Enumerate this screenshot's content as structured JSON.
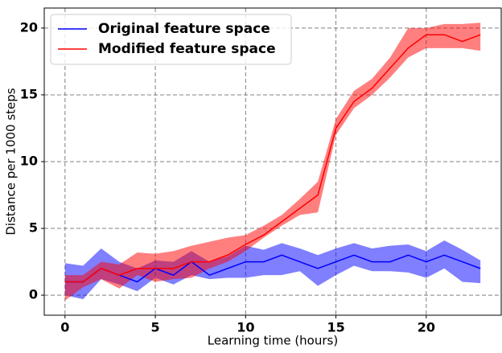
{
  "chart_data": {
    "type": "line",
    "x": [
      0,
      1,
      2,
      3,
      4,
      5,
      6,
      7,
      8,
      9,
      10,
      11,
      12,
      13,
      14,
      15,
      16,
      17,
      18,
      19,
      20,
      21,
      22,
      23
    ],
    "x_label": "Learning time (hours)",
    "y_label": "Distance per 1000 steps",
    "xlim": [
      -1.15,
      24.15
    ],
    "xticks": [
      0,
      5,
      10,
      15,
      20
    ],
    "ylim": [
      -1.5,
      21.5
    ],
    "yticks": [
      0,
      5,
      10,
      15,
      20
    ],
    "grid": true,
    "legend": "upper left",
    "series": [
      {
        "name": "Original feature space",
        "color": "#0000ff",
        "values": [
          1,
          1,
          2,
          1.5,
          1,
          2,
          1.5,
          2.5,
          1.5,
          2,
          2.5,
          2.5,
          3,
          2.5,
          2,
          2.5,
          3,
          2.5,
          2.5,
          3,
          2.5,
          3,
          2.5,
          2
        ],
        "lower": [
          0,
          -0.3,
          1.2,
          0.8,
          0.3,
          1.3,
          0.8,
          1.5,
          1.2,
          1.3,
          1.3,
          1.5,
          1.5,
          1.8,
          0.7,
          1.5,
          2.2,
          1.8,
          1.8,
          1.7,
          1.3,
          2,
          1,
          0.9
        ],
        "upper": [
          2.4,
          2.2,
          3.5,
          2.5,
          2,
          2.6,
          2.5,
          3.3,
          2.5,
          2.9,
          3.7,
          3.4,
          3.9,
          3.5,
          3,
          3.5,
          3.9,
          3.5,
          3.7,
          3.8,
          3.3,
          4.1,
          3.4,
          2.6
        ]
      },
      {
        "name": "Modified feature space",
        "color": "#ff0000",
        "values": [
          1,
          1,
          2,
          1.5,
          2,
          2,
          2,
          2.5,
          2.5,
          3,
          3.8,
          4.5,
          5.5,
          6.5,
          7.5,
          12.5,
          14.5,
          15.5,
          17,
          18.5,
          19.5,
          19.5,
          19,
          19.5
        ],
        "lower": [
          -0.4,
          0.6,
          1.2,
          0.5,
          1.5,
          1,
          1.2,
          1.3,
          2,
          2.5,
          3.3,
          4.3,
          5.2,
          6,
          6.2,
          12,
          14,
          15,
          16.3,
          17.8,
          18.5,
          18.5,
          18.5,
          18.3
        ],
        "upper": [
          1.5,
          1.5,
          2.5,
          2.3,
          3.2,
          3.1,
          3.3,
          3.7,
          4,
          4.3,
          4.5,
          5.2,
          6,
          7.2,
          8.5,
          13.2,
          15.3,
          16.2,
          17.8,
          20,
          20,
          20.3,
          20.3,
          20.4
        ]
      }
    ]
  }
}
